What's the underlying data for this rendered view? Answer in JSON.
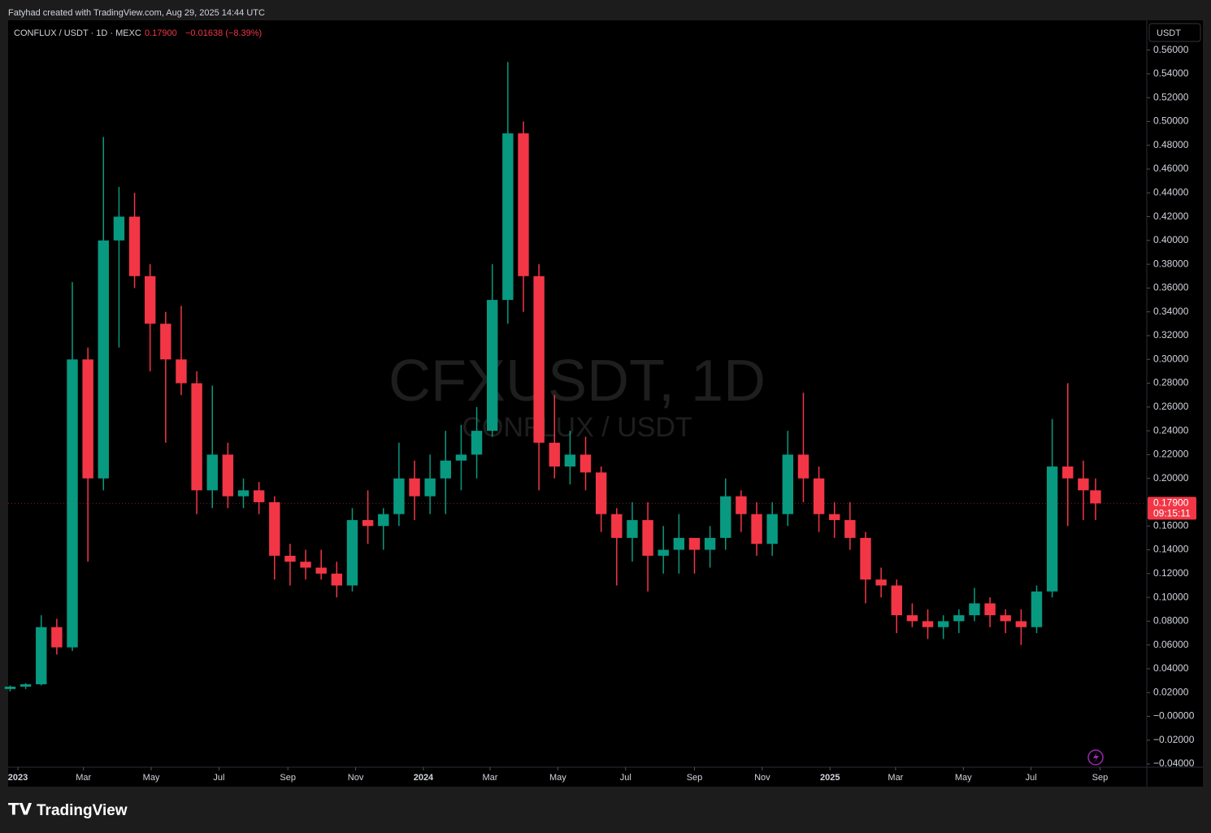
{
  "header": {
    "credit": "Fatyhad created with TradingView.com, Aug 29, 2025 14:44 UTC"
  },
  "chart_data": {
    "type": "candlestick",
    "legend": {
      "symbol": "CONFLUX / USDT · 1D · MEXC",
      "price": "0.17900",
      "change": "−0.01638 (−8.39%)"
    },
    "watermark": {
      "title": "CFXUSDT, 1D",
      "subtitle": "CONFLUX / USDT"
    },
    "currency": "USDT",
    "last_price_label": {
      "price": "0.17900",
      "countdown": "09:15:11"
    },
    "up_color": "#089981",
    "down_color": "#f23645",
    "grid": false,
    "x": [
      -7,
      7,
      21,
      35,
      49,
      63,
      77,
      91,
      105,
      119,
      133,
      147,
      161,
      175,
      189,
      203,
      217,
      231,
      245,
      259,
      273,
      287,
      301,
      315,
      329,
      343,
      357,
      371,
      385,
      399,
      413,
      427,
      441,
      455,
      469,
      483,
      497,
      511,
      525,
      539,
      553,
      567,
      581,
      595,
      609,
      623,
      637,
      651,
      665,
      679,
      693,
      707,
      721,
      735,
      749,
      763,
      777,
      791,
      805,
      819,
      833,
      847,
      861,
      875,
      889,
      903,
      917,
      931,
      945,
      959,
      970
    ],
    "open": [
      0.023,
      0.025,
      0.027,
      0.075,
      0.058,
      0.3,
      0.2,
      0.4,
      0.42,
      0.37,
      0.33,
      0.3,
      0.28,
      0.19,
      0.22,
      0.185,
      0.19,
      0.18,
      0.135,
      0.13,
      0.125,
      0.12,
      0.11,
      0.165,
      0.16,
      0.17,
      0.2,
      0.185,
      0.2,
      0.215,
      0.22,
      0.24,
      0.35,
      0.49,
      0.37,
      0.23,
      0.21,
      0.22,
      0.205,
      0.17,
      0.15,
      0.165,
      0.135,
      0.14,
      0.15,
      0.14,
      0.15,
      0.185,
      0.17,
      0.145,
      0.17,
      0.22,
      0.2,
      0.17,
      0.165,
      0.15,
      0.115,
      0.11,
      0.085,
      0.08,
      0.075,
      0.08,
      0.085,
      0.095,
      0.085,
      0.08,
      0.075,
      0.105,
      0.21,
      0.2,
      0.19
    ],
    "high": [
      0.026,
      0.028,
      0.085,
      0.082,
      0.365,
      0.31,
      0.487,
      0.445,
      0.44,
      0.38,
      0.34,
      0.345,
      0.29,
      0.278,
      0.23,
      0.2,
      0.197,
      0.185,
      0.145,
      0.14,
      0.14,
      0.13,
      0.175,
      0.19,
      0.175,
      0.23,
      0.215,
      0.22,
      0.24,
      0.245,
      0.26,
      0.38,
      0.55,
      0.5,
      0.38,
      0.27,
      0.24,
      0.235,
      0.21,
      0.175,
      0.18,
      0.18,
      0.16,
      0.17,
      0.15,
      0.16,
      0.2,
      0.19,
      0.18,
      0.18,
      0.24,
      0.272,
      0.21,
      0.18,
      0.18,
      0.155,
      0.125,
      0.115,
      0.095,
      0.09,
      0.085,
      0.09,
      0.108,
      0.1,
      0.09,
      0.09,
      0.11,
      0.25,
      0.28,
      0.215,
      0.2
    ],
    "low": [
      0.021,
      0.023,
      0.026,
      0.052,
      0.055,
      0.13,
      0.19,
      0.31,
      0.36,
      0.29,
      0.23,
      0.27,
      0.17,
      0.175,
      0.175,
      0.175,
      0.17,
      0.115,
      0.11,
      0.115,
      0.115,
      0.1,
      0.105,
      0.145,
      0.14,
      0.16,
      0.165,
      0.17,
      0.17,
      0.19,
      0.2,
      0.235,
      0.33,
      0.34,
      0.19,
      0.2,
      0.195,
      0.19,
      0.155,
      0.11,
      0.13,
      0.105,
      0.12,
      0.12,
      0.12,
      0.125,
      0.14,
      0.155,
      0.135,
      0.135,
      0.16,
      0.18,
      0.155,
      0.15,
      0.14,
      0.095,
      0.1,
      0.07,
      0.075,
      0.065,
      0.065,
      0.07,
      0.08,
      0.075,
      0.07,
      0.06,
      0.07,
      0.1,
      0.16,
      0.165,
      0.165
    ],
    "close": [
      0.025,
      0.027,
      0.075,
      0.058,
      0.3,
      0.2,
      0.4,
      0.42,
      0.37,
      0.33,
      0.3,
      0.28,
      0.19,
      0.22,
      0.185,
      0.19,
      0.18,
      0.135,
      0.13,
      0.125,
      0.12,
      0.11,
      0.165,
      0.16,
      0.17,
      0.2,
      0.185,
      0.2,
      0.215,
      0.22,
      0.24,
      0.35,
      0.49,
      0.37,
      0.23,
      0.21,
      0.22,
      0.205,
      0.17,
      0.15,
      0.165,
      0.135,
      0.14,
      0.15,
      0.14,
      0.15,
      0.185,
      0.17,
      0.145,
      0.17,
      0.22,
      0.2,
      0.17,
      0.165,
      0.15,
      0.115,
      0.11,
      0.085,
      0.08,
      0.075,
      0.08,
      0.085,
      0.095,
      0.085,
      0.08,
      0.075,
      0.105,
      0.21,
      0.2,
      0.19,
      0.179
    ],
    "xlim": [
      -8.8,
      1015.4
    ],
    "xticks": [
      {
        "value": 0,
        "label": "2023"
      },
      {
        "value": 59,
        "label": "Mar"
      },
      {
        "value": 120,
        "label": "May"
      },
      {
        "value": 181,
        "label": "Jul"
      },
      {
        "value": 243,
        "label": "Sep"
      },
      {
        "value": 304,
        "label": "Nov"
      },
      {
        "value": 365,
        "label": "2024"
      },
      {
        "value": 425,
        "label": "Mar"
      },
      {
        "value": 486,
        "label": "May"
      },
      {
        "value": 547,
        "label": "Jul"
      },
      {
        "value": 609,
        "label": "Sep"
      },
      {
        "value": 670,
        "label": "Nov"
      },
      {
        "value": 731,
        "label": "2025"
      },
      {
        "value": 790,
        "label": "Mar"
      },
      {
        "value": 851,
        "label": "May"
      },
      {
        "value": 912,
        "label": "Jul"
      },
      {
        "value": 974,
        "label": "Sep"
      }
    ],
    "ylim": [
      -0.042,
      0.585
    ],
    "yticks": [
      {
        "value": -0.04,
        "label": "−0.04000"
      },
      {
        "value": -0.02,
        "label": "−0.02000"
      },
      {
        "value": 0,
        "label": "−0.00000"
      },
      {
        "value": 0.02,
        "label": "0.02000"
      },
      {
        "value": 0.04,
        "label": "0.04000"
      },
      {
        "value": 0.06,
        "label": "0.06000"
      },
      {
        "value": 0.08,
        "label": "0.08000"
      },
      {
        "value": 0.1,
        "label": "0.10000"
      },
      {
        "value": 0.12,
        "label": "0.12000"
      },
      {
        "value": 0.14,
        "label": "0.14000"
      },
      {
        "value": 0.16,
        "label": "0.16000"
      },
      {
        "value": 0.2,
        "label": "0.20000"
      },
      {
        "value": 0.22,
        "label": "0.22000"
      },
      {
        "value": 0.24,
        "label": "0.24000"
      },
      {
        "value": 0.26,
        "label": "0.26000"
      },
      {
        "value": 0.28,
        "label": "0.28000"
      },
      {
        "value": 0.3,
        "label": "0.30000"
      },
      {
        "value": 0.32,
        "label": "0.32000"
      },
      {
        "value": 0.34,
        "label": "0.34000"
      },
      {
        "value": 0.36,
        "label": "0.36000"
      },
      {
        "value": 0.38,
        "label": "0.38000"
      },
      {
        "value": 0.4,
        "label": "0.40000"
      },
      {
        "value": 0.42,
        "label": "0.42000"
      },
      {
        "value": 0.44,
        "label": "0.44000"
      },
      {
        "value": 0.46,
        "label": "0.46000"
      },
      {
        "value": 0.48,
        "label": "0.48000"
      },
      {
        "value": 0.5,
        "label": "0.50000"
      },
      {
        "value": 0.52,
        "label": "0.52000"
      },
      {
        "value": 0.54,
        "label": "0.54000"
      },
      {
        "value": 0.56,
        "label": "0.56000"
      }
    ]
  },
  "footer": {
    "brand": "TradingView"
  }
}
